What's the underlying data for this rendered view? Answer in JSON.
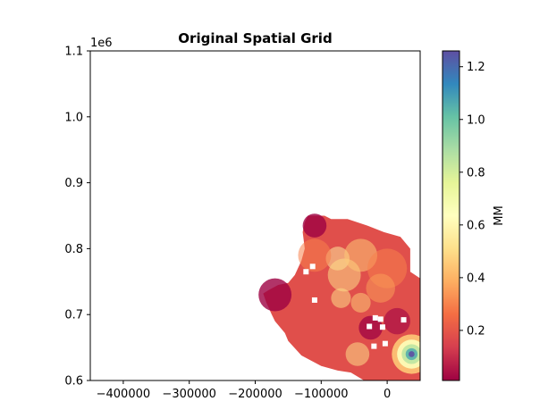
{
  "chart_data": {
    "type": "heatmap",
    "title": "Original Spatial Grid",
    "xlim": [
      -450000,
      50000
    ],
    "ylim": [
      600000,
      1100000
    ],
    "x_ticks": [
      -400000,
      -300000,
      -200000,
      -100000,
      0
    ],
    "x_tick_labels": [
      "−400000",
      "−300000",
      "−200000",
      "−100000",
      "0"
    ],
    "y_ticks": [
      600000,
      700000,
      800000,
      900000,
      1000000,
      1100000
    ],
    "y_tick_labels": [
      "0.6",
      "0.7",
      "0.8",
      "0.9",
      "1.0",
      "1.1"
    ],
    "y_offset_label": "1e6",
    "colorbar": {
      "label": "MM",
      "colormap": "Spectral",
      "range": [
        0.01,
        1.26
      ],
      "ticks": [
        0.2,
        0.4,
        0.6,
        0.8,
        1.0,
        1.2
      ],
      "tick_labels": [
        "0.2",
        "0.4",
        "0.6",
        "0.8",
        "1.0",
        "1.2"
      ]
    },
    "field": {
      "outline": [
        [
          -120000,
          850000
        ],
        [
          -95000,
          850000
        ],
        [
          -85000,
          845000
        ],
        [
          -60000,
          845000
        ],
        [
          -30000,
          835000
        ],
        [
          -5000,
          825000
        ],
        [
          20000,
          818000
        ],
        [
          35000,
          800000
        ],
        [
          35000,
          765000
        ],
        [
          50000,
          755000
        ],
        [
          50000,
          600000
        ],
        [
          -35000,
          600000
        ],
        [
          -55000,
          612000
        ],
        [
          -75000,
          615000
        ],
        [
          -100000,
          622000
        ],
        [
          -130000,
          638000
        ],
        [
          -150000,
          660000
        ],
        [
          -155000,
          672000
        ],
        [
          -170000,
          690000
        ],
        [
          -175000,
          700000
        ],
        [
          -183000,
          718000
        ],
        [
          -188000,
          732000
        ],
        [
          -180000,
          737000
        ],
        [
          -165000,
          745000
        ],
        [
          -150000,
          748000
        ],
        [
          -140000,
          760000
        ],
        [
          -130000,
          782000
        ],
        [
          -125000,
          800000
        ],
        [
          -128000,
          825000
        ],
        [
          -125000,
          840000
        ]
      ],
      "hotspots": [
        {
          "x": -75000,
          "y": 785000,
          "value": 0.55,
          "r": 18000
        },
        {
          "x": -65000,
          "y": 760000,
          "value": 0.5,
          "r": 25000
        },
        {
          "x": -40000,
          "y": 790000,
          "value": 0.45,
          "r": 25000
        },
        {
          "x": -70000,
          "y": 725000,
          "value": 0.5,
          "r": 15000
        },
        {
          "x": -40000,
          "y": 718000,
          "value": 0.45,
          "r": 15000
        },
        {
          "x": -45000,
          "y": 640000,
          "value": 0.5,
          "r": 18000
        },
        {
          "x": -110000,
          "y": 790000,
          "value": 0.3,
          "r": 25000
        },
        {
          "x": 0,
          "y": 770000,
          "value": 0.3,
          "r": 30000
        },
        {
          "x": -10000,
          "y": 740000,
          "value": 0.35,
          "r": 22000
        }
      ],
      "peak": {
        "x": 37000,
        "y": 640000,
        "value": 1.26
      },
      "low_spots": [
        {
          "x": -170000,
          "y": 730000,
          "value": 0.01,
          "r": 25000
        },
        {
          "x": -110000,
          "y": 835000,
          "value": 0.01,
          "r": 18000
        },
        {
          "x": -25000,
          "y": 680000,
          "value": 0.02,
          "r": 18000
        },
        {
          "x": 15000,
          "y": 690000,
          "value": 0.05,
          "r": 20000
        }
      ],
      "missing_cells": [
        [
          -113000,
          773000
        ],
        [
          -123000,
          765000
        ],
        [
          -110000,
          722000
        ],
        [
          -18000,
          695000
        ],
        [
          -10000,
          693000
        ],
        [
          -27000,
          682000
        ],
        [
          -7000,
          681000
        ],
        [
          -3000,
          656000
        ],
        [
          -20000,
          652000
        ],
        [
          25000,
          692000
        ]
      ]
    }
  }
}
